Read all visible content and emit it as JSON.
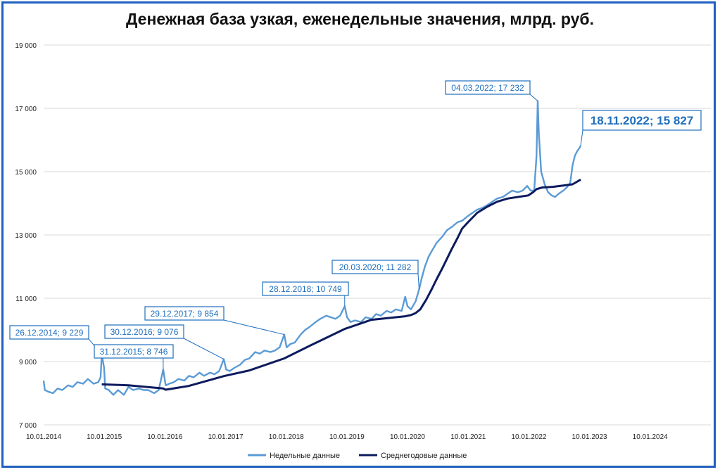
{
  "chart_data": {
    "type": "line",
    "title": "Денежная база узкая, еженедельные значения, млрд. руб.",
    "ylim": [
      7000,
      19000
    ],
    "yticks": [
      7000,
      9000,
      11000,
      13000,
      15000,
      17000,
      19000
    ],
    "ytick_labels": [
      "7 000",
      "9 000",
      "11 000",
      "13 000",
      "15 000",
      "17 000",
      "19 000"
    ],
    "xlim": [
      "2014-01-10",
      "2024-01-10"
    ],
    "xtick_labels": [
      "10.01.2014",
      "10.01.2015",
      "10.01.2016",
      "10.01.2017",
      "10.01.2018",
      "10.01.2019",
      "10.01.2020",
      "10.01.2021",
      "10.01.2022",
      "10.01.2023",
      "10.01.2024"
    ],
    "grid": "horizontal",
    "legend_position": "bottom",
    "colors": {
      "weekly": "#5b9bd5",
      "annual": "#0d1b5e",
      "annotation": "#1f6fbf",
      "grid": "#d9d9d9"
    },
    "series": [
      {
        "name": "Недельные данные",
        "points": [
          [
            "2014-01-10",
            8400
          ],
          [
            "2014-01-17",
            8100
          ],
          [
            "2014-02-07",
            8050
          ],
          [
            "2014-03-07",
            8000
          ],
          [
            "2014-04-04",
            8150
          ],
          [
            "2014-05-02",
            8100
          ],
          [
            "2014-06-06",
            8250
          ],
          [
            "2014-07-04",
            8200
          ],
          [
            "2014-08-01",
            8350
          ],
          [
            "2014-09-05",
            8300
          ],
          [
            "2014-10-03",
            8450
          ],
          [
            "2014-11-07",
            8300
          ],
          [
            "2014-12-05",
            8350
          ],
          [
            "2014-12-19",
            8500
          ],
          [
            "2014-12-26",
            9229
          ],
          [
            "2015-01-09",
            8800
          ],
          [
            "2015-01-16",
            8150
          ],
          [
            "2015-02-06",
            8100
          ],
          [
            "2015-03-06",
            7950
          ],
          [
            "2015-04-03",
            8100
          ],
          [
            "2015-05-08",
            7950
          ],
          [
            "2015-06-05",
            8200
          ],
          [
            "2015-07-03",
            8100
          ],
          [
            "2015-08-07",
            8150
          ],
          [
            "2015-09-04",
            8100
          ],
          [
            "2015-10-02",
            8100
          ],
          [
            "2015-11-06",
            8000
          ],
          [
            "2015-12-04",
            8100
          ],
          [
            "2015-12-31",
            8746
          ],
          [
            "2016-01-15",
            8250
          ],
          [
            "2016-02-05",
            8300
          ],
          [
            "2016-03-04",
            8350
          ],
          [
            "2016-04-01",
            8450
          ],
          [
            "2016-05-06",
            8400
          ],
          [
            "2016-06-03",
            8550
          ],
          [
            "2016-07-01",
            8500
          ],
          [
            "2016-08-05",
            8650
          ],
          [
            "2016-09-02",
            8550
          ],
          [
            "2016-10-07",
            8650
          ],
          [
            "2016-11-04",
            8600
          ],
          [
            "2016-12-02",
            8700
          ],
          [
            "2016-12-30",
            9076
          ],
          [
            "2017-01-13",
            8750
          ],
          [
            "2017-02-03",
            8700
          ],
          [
            "2017-03-03",
            8800
          ],
          [
            "2017-04-07",
            8900
          ],
          [
            "2017-05-05",
            9050
          ],
          [
            "2017-06-02",
            9100
          ],
          [
            "2017-07-07",
            9300
          ],
          [
            "2017-08-04",
            9250
          ],
          [
            "2017-09-01",
            9350
          ],
          [
            "2017-10-06",
            9300
          ],
          [
            "2017-11-03",
            9350
          ],
          [
            "2017-12-01",
            9450
          ],
          [
            "2017-12-29",
            9854
          ],
          [
            "2018-01-12",
            9450
          ],
          [
            "2018-02-02",
            9550
          ],
          [
            "2018-03-02",
            9600
          ],
          [
            "2018-04-06",
            9850
          ],
          [
            "2018-05-04",
            10000
          ],
          [
            "2018-06-01",
            10100
          ],
          [
            "2018-07-06",
            10250
          ],
          [
            "2018-08-03",
            10350
          ],
          [
            "2018-09-07",
            10450
          ],
          [
            "2018-10-05",
            10400
          ],
          [
            "2018-11-02",
            10350
          ],
          [
            "2018-11-30",
            10450
          ],
          [
            "2018-12-28",
            10749
          ],
          [
            "2019-01-11",
            10400
          ],
          [
            "2019-02-01",
            10250
          ],
          [
            "2019-03-01",
            10300
          ],
          [
            "2019-04-05",
            10250
          ],
          [
            "2019-05-03",
            10400
          ],
          [
            "2019-06-07",
            10350
          ],
          [
            "2019-07-05",
            10500
          ],
          [
            "2019-08-02",
            10450
          ],
          [
            "2019-09-06",
            10600
          ],
          [
            "2019-10-04",
            10550
          ],
          [
            "2019-11-01",
            10650
          ],
          [
            "2019-12-06",
            10600
          ],
          [
            "2019-12-27",
            11050
          ],
          [
            "2020-01-10",
            10750
          ],
          [
            "2020-01-31",
            10650
          ],
          [
            "2020-02-28",
            10900
          ],
          [
            "2020-03-20",
            11282
          ],
          [
            "2020-04-03",
            11600
          ],
          [
            "2020-04-24",
            12000
          ],
          [
            "2020-05-15",
            12300
          ],
          [
            "2020-06-05",
            12500
          ],
          [
            "2020-07-03",
            12750
          ],
          [
            "2020-08-07",
            12950
          ],
          [
            "2020-09-04",
            13150
          ],
          [
            "2020-10-02",
            13250
          ],
          [
            "2020-11-06",
            13400
          ],
          [
            "2020-12-04",
            13450
          ],
          [
            "2021-01-08",
            13600
          ],
          [
            "2021-02-05",
            13700
          ],
          [
            "2021-03-05",
            13800
          ],
          [
            "2021-04-02",
            13850
          ],
          [
            "2021-05-07",
            13950
          ],
          [
            "2021-06-04",
            14050
          ],
          [
            "2021-07-02",
            14150
          ],
          [
            "2021-08-06",
            14200
          ],
          [
            "2021-09-03",
            14300
          ],
          [
            "2021-10-01",
            14400
          ],
          [
            "2021-11-05",
            14350
          ],
          [
            "2021-12-03",
            14400
          ],
          [
            "2021-12-31",
            14550
          ],
          [
            "2022-01-21",
            14400
          ],
          [
            "2022-02-11",
            14400
          ],
          [
            "2022-02-25",
            15500
          ],
          [
            "2022-03-04",
            17232
          ],
          [
            "2022-03-11",
            16200
          ],
          [
            "2022-03-25",
            15000
          ],
          [
            "2022-04-15",
            14600
          ],
          [
            "2022-05-06",
            14350
          ],
          [
            "2022-05-27",
            14250
          ],
          [
            "2022-06-17",
            14200
          ],
          [
            "2022-07-08",
            14300
          ],
          [
            "2022-08-05",
            14400
          ],
          [
            "2022-08-26",
            14500
          ],
          [
            "2022-09-16",
            14650
          ],
          [
            "2022-09-30",
            15200
          ],
          [
            "2022-10-14",
            15500
          ],
          [
            "2022-10-28",
            15650
          ],
          [
            "2022-11-11",
            15750
          ],
          [
            "2022-11-18",
            15827
          ]
        ]
      },
      {
        "name": "Среднегодовые данные",
        "points": [
          [
            "2014-12-26",
            8280
          ],
          [
            "2015-06-05",
            8250
          ],
          [
            "2015-12-31",
            8150
          ],
          [
            "2016-01-15",
            8110
          ],
          [
            "2016-06-03",
            8230
          ],
          [
            "2016-12-30",
            8540
          ],
          [
            "2017-06-02",
            8720
          ],
          [
            "2017-12-29",
            9100
          ],
          [
            "2018-06-01",
            9500
          ],
          [
            "2018-12-28",
            10030
          ],
          [
            "2019-06-07",
            10320
          ],
          [
            "2019-12-27",
            10430
          ],
          [
            "2020-01-31",
            10470
          ],
          [
            "2020-02-28",
            10530
          ],
          [
            "2020-03-27",
            10650
          ],
          [
            "2020-05-01",
            10950
          ],
          [
            "2020-06-05",
            11300
          ],
          [
            "2020-07-03",
            11600
          ],
          [
            "2020-08-07",
            11950
          ],
          [
            "2020-09-04",
            12250
          ],
          [
            "2020-10-02",
            12550
          ],
          [
            "2020-11-06",
            12900
          ],
          [
            "2020-12-04",
            13200
          ],
          [
            "2021-01-08",
            13400
          ],
          [
            "2021-03-05",
            13700
          ],
          [
            "2021-05-07",
            13900
          ],
          [
            "2021-07-02",
            14050
          ],
          [
            "2021-09-03",
            14150
          ],
          [
            "2021-11-05",
            14200
          ],
          [
            "2022-01-07",
            14250
          ],
          [
            "2022-02-04",
            14350
          ],
          [
            "2022-02-25",
            14450
          ],
          [
            "2022-04-01",
            14500
          ],
          [
            "2022-06-03",
            14520
          ],
          [
            "2022-08-05",
            14560
          ],
          [
            "2022-09-30",
            14600
          ],
          [
            "2022-11-18",
            14750
          ]
        ]
      }
    ],
    "annotations": [
      {
        "label": "26.12.2014; 9 229",
        "date": "2014-12-26",
        "value": 9229
      },
      {
        "label": "31.12.2015; 8 746",
        "date": "2015-12-31",
        "value": 8746
      },
      {
        "label": "30.12.2016; 9 076",
        "date": "2016-12-30",
        "value": 9076
      },
      {
        "label": "29.12.2017; 9 854",
        "date": "2017-12-29",
        "value": 9854
      },
      {
        "label": "28.12.2018; 10 749",
        "date": "2018-12-28",
        "value": 10749
      },
      {
        "label": "20.03.2020; 11 282",
        "date": "2020-03-20",
        "value": 11282
      },
      {
        "label": "04.03.2022; 17 232",
        "date": "2022-03-04",
        "value": 17232
      },
      {
        "label": "18.11.2022; 15 827",
        "date": "2022-11-18",
        "value": 15827
      }
    ]
  }
}
